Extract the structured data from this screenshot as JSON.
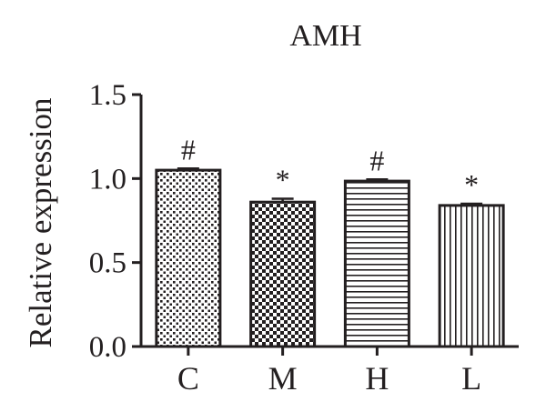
{
  "chart_data": {
    "type": "bar",
    "title": "AMH",
    "xlabel": "",
    "ylabel": "Relative expression",
    "categories": [
      "C",
      "M",
      "H",
      "L"
    ],
    "values": [
      1.05,
      0.86,
      0.985,
      0.84
    ],
    "errors": [
      0.01,
      0.02,
      0.01,
      0.01
    ],
    "annotations": [
      "#",
      "*",
      "#",
      "*"
    ],
    "patterns": [
      "dots",
      "checker",
      "horizontal-lines",
      "vertical-lines"
    ],
    "ylim": [
      0,
      1.5
    ],
    "yticks": [
      0.0,
      0.5,
      1.0,
      1.5
    ],
    "ytick_labels": [
      "0.0",
      "0.5",
      "1.0",
      "1.5"
    ],
    "grid": false,
    "legend": "none",
    "colors": {
      "bar_edge": "#231f20",
      "fill": "#ffffff",
      "text": "#231f20"
    }
  }
}
